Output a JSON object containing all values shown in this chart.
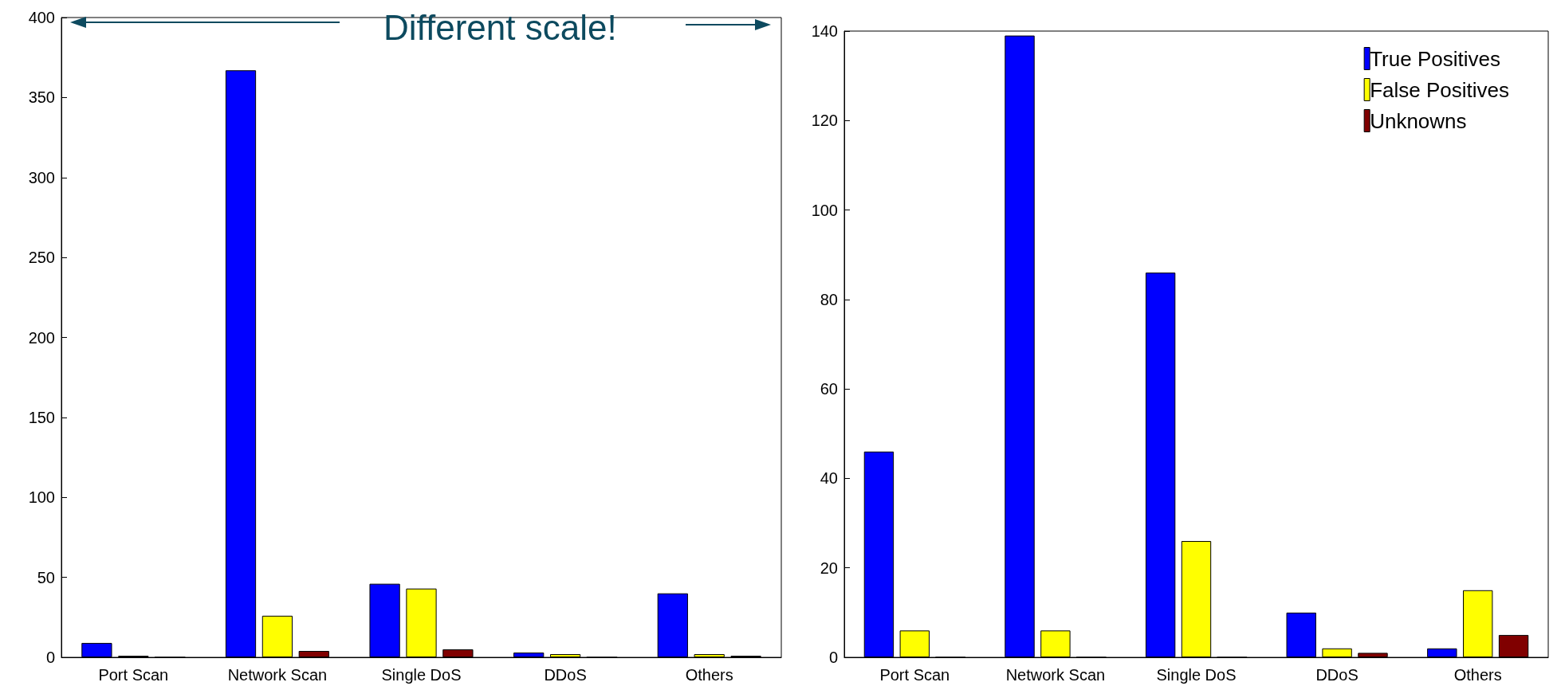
{
  "chart_data": [
    {
      "type": "bar",
      "annotations": [
        "Different scale!"
      ],
      "categories": [
        "Port Scan",
        "Network Scan",
        "Single DoS",
        "DDoS",
        "Others"
      ],
      "series": [
        {
          "color": "#0000ff",
          "values": [
            9,
            367,
            46,
            3,
            40
          ]
        },
        {
          "color": "#ffff00",
          "values": [
            1,
            26,
            43,
            2,
            2
          ]
        },
        {
          "color": "#800000",
          "values": [
            0,
            4,
            5,
            0,
            1
          ]
        }
      ],
      "ylim": [
        0,
        400
      ],
      "yticks": [
        0,
        50,
        100,
        150,
        200,
        250,
        300,
        350,
        400
      ],
      "grid": false,
      "legend": false
    },
    {
      "type": "bar",
      "categories": [
        "Port Scan",
        "Network Scan",
        "Single DoS",
        "DDoS",
        "Others"
      ],
      "series": [
        {
          "name": "True Positives",
          "color": "#0000ff",
          "values": [
            46,
            139,
            86,
            10,
            2
          ]
        },
        {
          "name": "False Positives",
          "color": "#ffff00",
          "values": [
            6,
            6,
            26,
            2,
            15
          ]
        },
        {
          "name": "Unknowns",
          "color": "#800000",
          "values": [
            0,
            0,
            0,
            1,
            5
          ]
        }
      ],
      "ylim": [
        0,
        140
      ],
      "yticks": [
        0,
        20,
        40,
        60,
        80,
        100,
        120,
        140
      ],
      "grid": false,
      "legend": "top right"
    }
  ]
}
